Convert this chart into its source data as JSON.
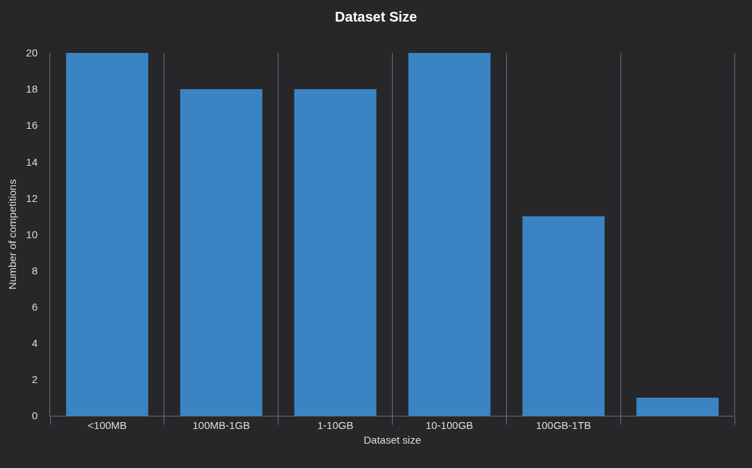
{
  "chart_data": {
    "type": "bar",
    "title": "Dataset Size",
    "xlabel": "Dataset size",
    "ylabel": "Number of competitions",
    "categories": [
      "<100MB",
      "100MB-1GB",
      "1-10GB",
      "10-100GB",
      "100GB-1TB",
      null
    ],
    "values": [
      20,
      18,
      18,
      20,
      11,
      1
    ],
    "color": "#3a84c4",
    "ylim": [
      0,
      20
    ],
    "yticks": [
      0,
      2,
      4,
      6,
      8,
      10,
      12,
      14,
      16,
      18,
      20
    ],
    "grid": "x",
    "legend": false
  }
}
